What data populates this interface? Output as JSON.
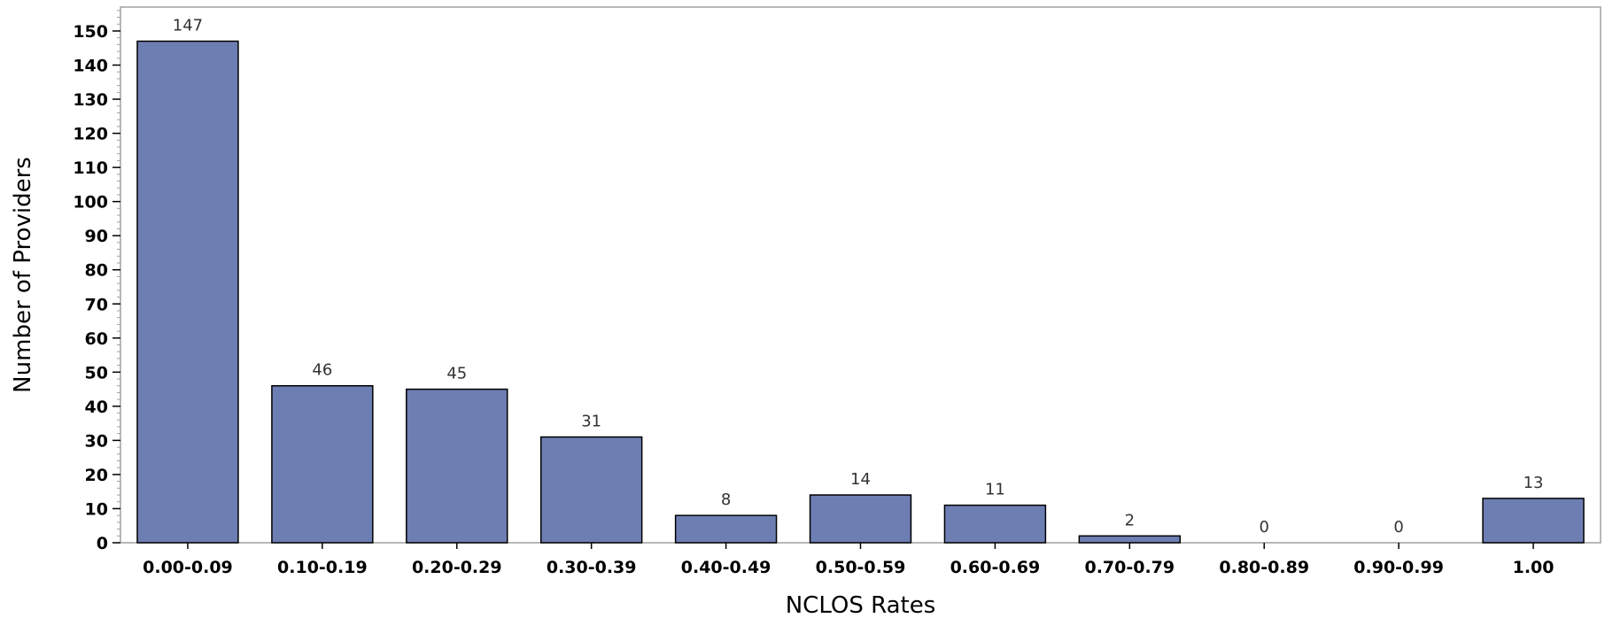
{
  "chart_data": {
    "type": "bar",
    "title": "",
    "xlabel": "NCLOS Rates",
    "ylabel": "Number of Providers",
    "categories": [
      "0.00-0.09",
      "0.10-0.19",
      "0.20-0.29",
      "0.30-0.39",
      "0.40-0.49",
      "0.50-0.59",
      "0.60-0.69",
      "0.70-0.79",
      "0.80-0.89",
      "0.90-0.99",
      "1.00"
    ],
    "values": [
      147,
      46,
      45,
      31,
      8,
      14,
      11,
      2,
      0,
      0,
      13
    ],
    "data_labels": [
      "147",
      "46",
      "45",
      "31",
      "8",
      "14",
      "11",
      "2",
      "0",
      "0",
      "13"
    ],
    "ylim": [
      0,
      157
    ],
    "yticks": [
      0,
      10,
      20,
      30,
      40,
      50,
      60,
      70,
      80,
      90,
      100,
      110,
      120,
      130,
      140,
      150
    ],
    "ytick_labels": [
      "0",
      "10",
      "20",
      "30",
      "40",
      "50",
      "60",
      "70",
      "80",
      "90",
      "100",
      "110",
      "120",
      "130",
      "140",
      "150"
    ],
    "minor_tick_step": 2,
    "grid": false,
    "legend": "none",
    "bar_color": "#6d7eb2",
    "bar_edge_color": "#000000",
    "frame_color": "#a0a0a0"
  }
}
